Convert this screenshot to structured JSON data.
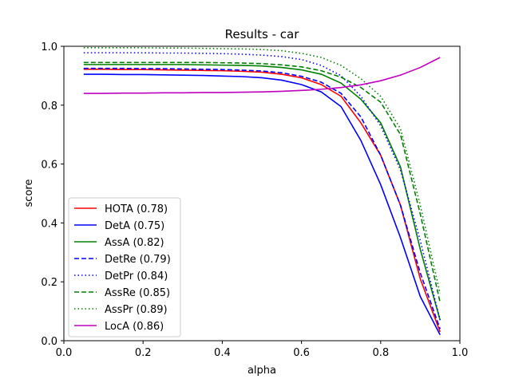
{
  "chart_data": {
    "type": "line",
    "title": "Results - car",
    "xlabel": "alpha",
    "ylabel": "score",
    "xlim": [
      0.0,
      1.0
    ],
    "ylim": [
      0.0,
      1.0
    ],
    "xticks": [
      "0.0",
      "0.2",
      "0.4",
      "0.6",
      "0.8",
      "1.0"
    ],
    "yticks": [
      "0.0",
      "0.2",
      "0.4",
      "0.6",
      "0.8",
      "1.0"
    ],
    "grid": false,
    "legend_position": "lower-left",
    "x": [
      0.05,
      0.1,
      0.15,
      0.2,
      0.25,
      0.3,
      0.35,
      0.4,
      0.45,
      0.5,
      0.55,
      0.6,
      0.65,
      0.7,
      0.75,
      0.8,
      0.85,
      0.9,
      0.95
    ],
    "series": [
      {
        "name": "HOTA (0.78)",
        "color": "#ff0000",
        "dash": "solid",
        "values": [
          0.922,
          0.922,
          0.921,
          0.921,
          0.92,
          0.919,
          0.918,
          0.917,
          0.915,
          0.912,
          0.905,
          0.893,
          0.87,
          0.83,
          0.74,
          0.63,
          0.46,
          0.21,
          0.03
        ]
      },
      {
        "name": "DetA (0.75)",
        "color": "#0000ff",
        "dash": "solid",
        "values": [
          0.905,
          0.905,
          0.904,
          0.904,
          0.903,
          0.902,
          0.901,
          0.899,
          0.897,
          0.893,
          0.885,
          0.87,
          0.845,
          0.795,
          0.68,
          0.53,
          0.35,
          0.15,
          0.02
        ]
      },
      {
        "name": "AssA (0.82)",
        "color": "#008000",
        "dash": "solid",
        "values": [
          0.938,
          0.938,
          0.938,
          0.938,
          0.938,
          0.938,
          0.937,
          0.936,
          0.935,
          0.933,
          0.928,
          0.92,
          0.905,
          0.875,
          0.82,
          0.74,
          0.59,
          0.31,
          0.07
        ]
      },
      {
        "name": "DetRe (0.79)",
        "color": "#0000ff",
        "dash": "dashed",
        "values": [
          0.925,
          0.925,
          0.925,
          0.924,
          0.924,
          0.923,
          0.922,
          0.921,
          0.919,
          0.916,
          0.91,
          0.898,
          0.878,
          0.84,
          0.76,
          0.63,
          0.46,
          0.23,
          0.04
        ]
      },
      {
        "name": "DetPr (0.84)",
        "color": "#0000ff",
        "dash": "dotted",
        "values": [
          0.978,
          0.978,
          0.978,
          0.978,
          0.977,
          0.977,
          0.976,
          0.975,
          0.973,
          0.97,
          0.965,
          0.955,
          0.935,
          0.9,
          0.83,
          0.73,
          0.58,
          0.34,
          0.07
        ]
      },
      {
        "name": "AssRe (0.85)",
        "color": "#008000",
        "dash": "dashed",
        "values": [
          0.945,
          0.945,
          0.945,
          0.945,
          0.945,
          0.945,
          0.945,
          0.944,
          0.943,
          0.941,
          0.937,
          0.93,
          0.917,
          0.895,
          0.86,
          0.81,
          0.7,
          0.43,
          0.13
        ]
      },
      {
        "name": "AssPr (0.89)",
        "color": "#008000",
        "dash": "dotted",
        "values": [
          0.995,
          0.995,
          0.995,
          0.995,
          0.994,
          0.994,
          0.993,
          0.992,
          0.991,
          0.989,
          0.985,
          0.976,
          0.962,
          0.935,
          0.89,
          0.83,
          0.72,
          0.46,
          0.16
        ]
      },
      {
        "name": "LocA (0.86)",
        "color": "#c000c0",
        "dash": "solid",
        "values": [
          0.84,
          0.84,
          0.841,
          0.841,
          0.842,
          0.842,
          0.843,
          0.843,
          0.844,
          0.845,
          0.847,
          0.85,
          0.854,
          0.86,
          0.869,
          0.883,
          0.902,
          0.928,
          0.962
        ]
      }
    ]
  }
}
